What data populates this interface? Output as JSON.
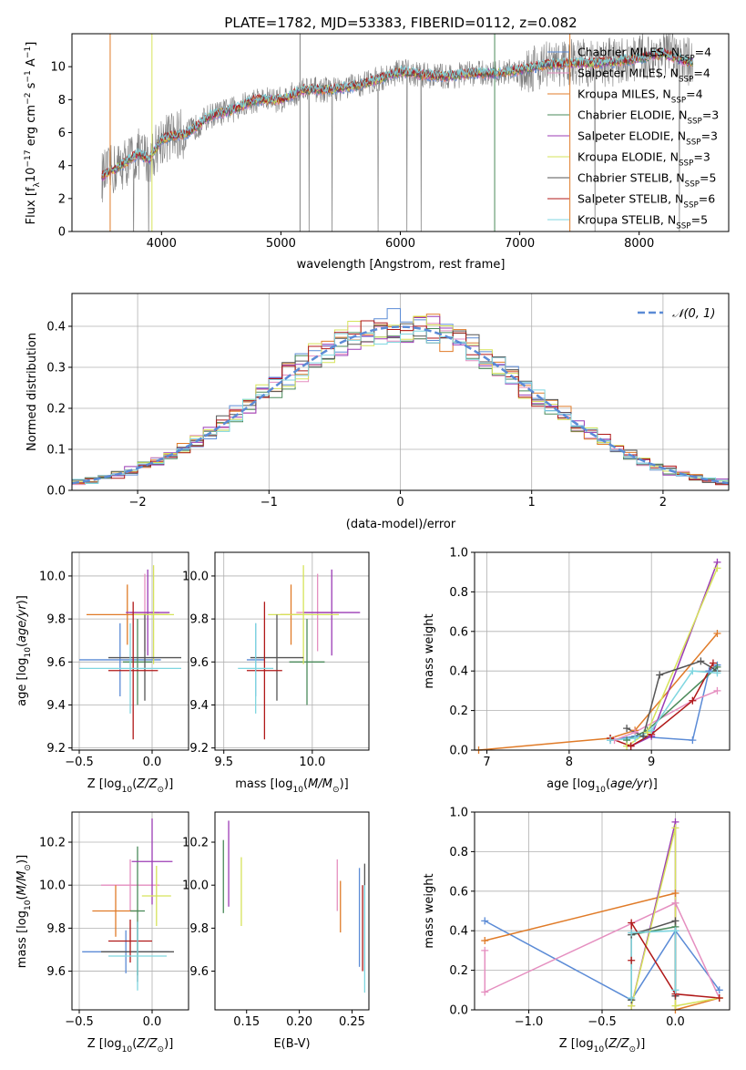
{
  "figure": {
    "title": "PLATE=1782, MJD=53383, FIBERID=0112, z=0.082"
  },
  "palette": {
    "Chabrier MILES": "#5b8bd6",
    "Salpeter MILES": "#e58fc0",
    "Kroupa MILES": "#e07b28",
    "Chabrier ELODIE": "#4a8a5a",
    "Salpeter ELODIE": "#9b3bb5",
    "Kroupa ELODIE": "#d6e35a",
    "Chabrier STELIB": "#555555",
    "Salpeter STELIB": "#b01818",
    "Kroupa STELIB": "#7fd6e0",
    "data": "#808080",
    "normal": "#5b8bd6"
  },
  "chart_data": [
    {
      "id": "spectrum",
      "type": "line",
      "title": "PLATE=1782, MJD=53383, FIBERID=0112, z=0.082",
      "xlabel": "wavelength [Angstrom, rest frame]",
      "ylabel": "Flux [f_λ 10^-17 erg cm^-2 s^-1 A^-1]",
      "xlim": [
        3250,
        8750
      ],
      "ylim": [
        0,
        12
      ],
      "xticks": [
        "4000",
        "5000",
        "6000",
        "7000",
        "8000"
      ],
      "yticks": [
        "0",
        "2",
        "4",
        "6",
        "8",
        "10"
      ],
      "legend_position": "right",
      "legend": [
        {
          "label": "Chabrier MILES, N_SSP=4",
          "text": "Chabrier MILES, N",
          "sub": "SSP",
          "tail": "=4"
        },
        {
          "label": "Salpeter MILES, N_SSP=4",
          "text": "Salpeter MILES, N",
          "sub": "SSP",
          "tail": "=4"
        },
        {
          "label": "Kroupa MILES, N_SSP=4",
          "text": "Kroupa MILES, N",
          "sub": "SSP",
          "tail": "=4"
        },
        {
          "label": "Chabrier ELODIE, N_SSP=3",
          "text": "Chabrier ELODIE, N",
          "sub": "SSP",
          "tail": "=3"
        },
        {
          "label": "Salpeter ELODIE, N_SSP=3",
          "text": "Salpeter ELODIE, N",
          "sub": "SSP",
          "tail": "=3"
        },
        {
          "label": "Kroupa ELODIE, N_SSP=3",
          "text": "Kroupa ELODIE, N",
          "sub": "SSP",
          "tail": "=3"
        },
        {
          "label": "Chabrier STELIB, N_SSP=5",
          "text": "Chabrier STELIB, N",
          "sub": "SSP",
          "tail": "=5"
        },
        {
          "label": "Salpeter STELIB, N_SSP=6",
          "text": "Salpeter STELIB, N",
          "sub": "SSP",
          "tail": "=6"
        },
        {
          "label": "Kroupa STELIB, N_SSP=5",
          "text": "Kroupa STELIB, N",
          "sub": "SSP",
          "tail": "=5"
        }
      ],
      "model_continuum": {
        "x": [
          3500,
          3700,
          3800,
          3900,
          4000,
          4100,
          4200,
          4300,
          4400,
          4600,
          4800,
          5000,
          5200,
          5400,
          5600,
          5800,
          6000,
          6200,
          6400,
          6600,
          6800,
          7000,
          7200,
          7400,
          7600,
          7800,
          8000,
          8200,
          8400
        ],
        "y": [
          3.3,
          4.2,
          4.7,
          4.4,
          5.6,
          5.8,
          5.9,
          6.4,
          7.0,
          7.4,
          8.0,
          8.0,
          8.6,
          8.6,
          8.8,
          9.2,
          9.7,
          9.5,
          9.4,
          9.6,
          9.6,
          9.8,
          10.1,
          10.2,
          10.2,
          10.3,
          10.5,
          10.8,
          10.3
        ]
      }
    },
    {
      "id": "residuals",
      "type": "histogram",
      "xlabel": "(data-model)/error",
      "ylabel": "Normed distribution",
      "xlim": [
        -2.5,
        2.5
      ],
      "ylim": [
        0,
        0.48
      ],
      "xticks": [
        "−2",
        "−1",
        "0",
        "1",
        "2"
      ],
      "yticks": [
        "0.0",
        "0.1",
        "0.2",
        "0.3",
        "0.4"
      ],
      "grid": true,
      "legend_position": "top-right",
      "legend": [
        "𝒩(0, 1)"
      ],
      "bin_width": 0.1
    },
    {
      "id": "age-vs-Z",
      "type": "scatter",
      "xlabel": "Z [log10(Z/Z⊙)]",
      "ylabel": "age [log10(age/yr)]",
      "xlim": [
        -0.55,
        0.25
      ],
      "ylim": [
        9.19,
        10.11
      ],
      "xticks": [
        "−0.5",
        "0.0"
      ],
      "yticks": [
        "9.2",
        "9.4",
        "9.6",
        "9.8",
        "10.0"
      ],
      "grid": true,
      "points": [
        {
          "model": "Chabrier MILES",
          "x": -0.22,
          "xerr": 0.28,
          "y": 9.61,
          "yerr": 0.17
        },
        {
          "model": "Salpeter MILES",
          "x": -0.05,
          "xerr": 0.1,
          "y": 9.83,
          "yerr": 0.18
        },
        {
          "model": "Kroupa MILES",
          "x": -0.17,
          "xerr": 0.28,
          "y": 9.82,
          "yerr": 0.14
        },
        {
          "model": "Chabrier ELODIE",
          "x": -0.1,
          "xerr": 0.1,
          "y": 9.6,
          "yerr": 0.2
        },
        {
          "model": "Salpeter ELODIE",
          "x": -0.03,
          "xerr": 0.15,
          "y": 9.83,
          "yerr": 0.2
        },
        {
          "model": "Kroupa ELODIE",
          "x": 0.01,
          "xerr": 0.14,
          "y": 9.82,
          "yerr": 0.23
        },
        {
          "model": "Chabrier STELIB",
          "x": -0.05,
          "xerr": 0.25,
          "y": 9.62,
          "yerr": 0.2
        },
        {
          "model": "Salpeter STELIB",
          "x": -0.13,
          "xerr": 0.17,
          "y": 9.56,
          "yerr": 0.32
        },
        {
          "model": "Kroupa STELIB",
          "x": -0.15,
          "xerr": 0.35,
          "y": 9.57,
          "yerr": 0.21
        }
      ]
    },
    {
      "id": "age-vs-mass",
      "type": "scatter",
      "xlabel": "mass [log10(M/M⊙)]",
      "xlim": [
        9.45,
        10.32
      ],
      "ylim": [
        9.19,
        10.11
      ],
      "xticks": [
        "9.5",
        "10.0"
      ],
      "yticks": [
        "9.2",
        "9.4",
        "9.6",
        "9.8",
        "10.0"
      ],
      "grid": true,
      "points": [
        {
          "model": "Chabrier MILES",
          "x": 9.68,
          "xerr": 0.05,
          "y": 9.61,
          "yerr": 0.17
        },
        {
          "model": "Salpeter MILES",
          "x": 10.03,
          "xerr": 0.12,
          "y": 9.83,
          "yerr": 0.18
        },
        {
          "model": "Kroupa MILES",
          "x": 9.88,
          "xerr": 0.06,
          "y": 9.82,
          "yerr": 0.14
        },
        {
          "model": "Chabrier ELODIE",
          "x": 9.97,
          "xerr": 0.1,
          "y": 9.6,
          "yerr": 0.2
        },
        {
          "model": "Salpeter ELODIE",
          "x": 10.11,
          "xerr": 0.16,
          "y": 9.83,
          "yerr": 0.2
        },
        {
          "model": "Kroupa ELODIE",
          "x": 9.95,
          "xerr": 0.2,
          "y": 9.82,
          "yerr": 0.23
        },
        {
          "model": "Chabrier STELIB",
          "x": 9.8,
          "xerr": 0.15,
          "y": 9.62,
          "yerr": 0.2
        },
        {
          "model": "Salpeter STELIB",
          "x": 9.73,
          "xerr": 0.1,
          "y": 9.56,
          "yerr": 0.32
        },
        {
          "model": "Kroupa STELIB",
          "x": 9.68,
          "xerr": 0.1,
          "y": 9.57,
          "yerr": 0.21
        }
      ]
    },
    {
      "id": "mass-weight-vs-age",
      "type": "line",
      "xlabel": "age [log10(age/yr)]",
      "ylabel": "mass weight",
      "xlim": [
        6.85,
        9.95
      ],
      "ylim": [
        0,
        1
      ],
      "xticks": [
        "7",
        "8",
        "9"
      ],
      "yticks": [
        "0.0",
        "0.2",
        "0.4",
        "0.6",
        "0.8",
        "1.0"
      ],
      "grid": true,
      "series": [
        {
          "model": "Kroupa MILES",
          "x": [
            6.9,
            8.5,
            8.8,
            9.8
          ],
          "y": [
            0.0,
            0.06,
            0.1,
            0.59
          ]
        },
        {
          "model": "Chabrier MILES",
          "x": [
            8.5,
            8.8,
            9.5,
            9.7,
            9.8
          ],
          "y": [
            0.05,
            0.07,
            0.05,
            0.4,
            0.43
          ]
        },
        {
          "model": "Salpeter MILES",
          "x": [
            8.55,
            8.8,
            9.5,
            9.8
          ],
          "y": [
            0.05,
            0.09,
            0.25,
            0.3
          ]
        },
        {
          "model": "Chabrier ELODIE",
          "x": [
            8.7,
            8.95,
            9.8
          ],
          "y": [
            0.05,
            0.1,
            0.42
          ]
        },
        {
          "model": "Salpeter ELODIE",
          "x": [
            8.75,
            9.0,
            9.8
          ],
          "y": [
            0.02,
            0.07,
            0.95
          ]
        },
        {
          "model": "Kroupa ELODIE",
          "x": [
            8.7,
            8.95,
            9.8
          ],
          "y": [
            0.02,
            0.09,
            0.92
          ]
        },
        {
          "model": "Chabrier STELIB",
          "x": [
            8.7,
            8.9,
            9.1,
            9.6,
            9.8
          ],
          "y": [
            0.11,
            0.07,
            0.38,
            0.45,
            0.4
          ]
        },
        {
          "model": "Salpeter STELIB",
          "x": [
            8.5,
            8.75,
            9.0,
            9.5,
            9.75
          ],
          "y": [
            0.06,
            0.02,
            0.08,
            0.25,
            0.44
          ]
        },
        {
          "model": "Kroupa STELIB",
          "x": [
            8.5,
            8.8,
            9.0,
            9.5,
            9.8
          ],
          "y": [
            0.05,
            0.06,
            0.1,
            0.4,
            0.39
          ]
        }
      ]
    },
    {
      "id": "mass-vs-Z",
      "type": "scatter",
      "xlabel": "Z [log10(Z/Z⊙)]",
      "ylabel": "mass [log10(M/M⊙)]",
      "xlim": [
        -0.55,
        0.25
      ],
      "ylim": [
        9.42,
        10.34
      ],
      "xticks": [
        "−0.5",
        "0.0"
      ],
      "yticks": [
        "9.6",
        "9.8",
        "10.0",
        "10.2"
      ],
      "grid": true,
      "points": [
        {
          "model": "Chabrier MILES",
          "x": -0.18,
          "xerr": 0.3,
          "y": 9.69,
          "yerr": 0.1
        },
        {
          "model": "Salpeter MILES",
          "x": -0.15,
          "xerr": 0.2,
          "y": 10.0,
          "yerr": 0.12
        },
        {
          "model": "Kroupa MILES",
          "x": -0.25,
          "xerr": 0.16,
          "y": 9.88,
          "yerr": 0.12
        },
        {
          "model": "Chabrier ELODIE",
          "x": -0.1,
          "xerr": 0.05,
          "y": 9.88,
          "yerr": 0.3
        },
        {
          "model": "Salpeter ELODIE",
          "x": 0.0,
          "xerr": 0.14,
          "y": 10.11,
          "yerr": 0.2
        },
        {
          "model": "Kroupa ELODIE",
          "x": 0.03,
          "xerr": 0.1,
          "y": 9.95,
          "yerr": 0.14
        },
        {
          "model": "Chabrier STELIB",
          "x": -0.1,
          "xerr": 0.25,
          "y": 9.69,
          "yerr": 0.14
        },
        {
          "model": "Salpeter STELIB",
          "x": -0.15,
          "xerr": 0.15,
          "y": 9.74,
          "yerr": 0.1
        },
        {
          "model": "Kroupa STELIB",
          "x": -0.1,
          "xerr": 0.2,
          "y": 9.67,
          "yerr": 0.16
        }
      ]
    },
    {
      "id": "mass-vs-EBV",
      "type": "scatter",
      "xlabel": "E(B-V)",
      "xlim": [
        0.12,
        0.266
      ],
      "ylim": [
        9.42,
        10.34
      ],
      "xticks": [
        "0.15",
        "0.20",
        "0.25"
      ],
      "yticks": [
        "9.6",
        "9.8",
        "10.0",
        "10.2"
      ],
      "grid": false,
      "points": [
        {
          "model": "Chabrier MILES",
          "x": 0.257,
          "y": 9.85,
          "yerr": 0.23
        },
        {
          "model": "Salpeter MILES",
          "x": 0.236,
          "y": 10.0,
          "yerr": 0.12
        },
        {
          "model": "Kroupa MILES",
          "x": 0.239,
          "y": 9.9,
          "yerr": 0.12
        },
        {
          "model": "Chabrier ELODIE",
          "x": 0.128,
          "y": 10.04,
          "yerr": 0.17
        },
        {
          "model": "Salpeter ELODIE",
          "x": 0.133,
          "y": 10.1,
          "yerr": 0.2
        },
        {
          "model": "Kroupa ELODIE",
          "x": 0.145,
          "y": 9.97,
          "yerr": 0.16
        },
        {
          "model": "Chabrier STELIB",
          "x": 0.262,
          "y": 9.85,
          "yerr": 0.25
        },
        {
          "model": "Salpeter STELIB",
          "x": 0.26,
          "y": 9.8,
          "yerr": 0.2
        },
        {
          "model": "Kroupa STELIB",
          "x": 0.262,
          "y": 9.75,
          "yerr": 0.25
        }
      ]
    },
    {
      "id": "mass-weight-vs-Z",
      "type": "line",
      "xlabel": "Z [log10(Z/Z⊙)]",
      "ylabel": "mass weight",
      "xlim": [
        -1.37,
        0.37
      ],
      "ylim": [
        0,
        1
      ],
      "xticks": [
        "−1.0",
        "−0.5",
        "0.0"
      ],
      "yticks": [
        "0.0",
        "0.2",
        "0.4",
        "0.6",
        "0.8",
        "1.0"
      ],
      "grid": true,
      "series": [
        {
          "model": "Chabrier MILES",
          "x": [
            -1.3,
            -0.3,
            0.0,
            0.3
          ],
          "y": [
            0.45,
            0.05,
            0.4,
            0.1
          ]
        },
        {
          "model": "Salpeter MILES",
          "x": [
            -1.3,
            -1.3,
            0.0,
            0.3
          ],
          "y": [
            0.3,
            0.09,
            0.54,
            0.06
          ]
        },
        {
          "model": "Kroupa MILES",
          "x": [
            -1.3,
            0.0,
            0.0,
            0.3
          ],
          "y": [
            0.35,
            0.59,
            0.0,
            0.06
          ]
        },
        {
          "model": "Chabrier ELODIE",
          "x": [
            -0.3,
            -0.3,
            0.0
          ],
          "y": [
            0.05,
            0.38,
            0.42
          ]
        },
        {
          "model": "Salpeter ELODIE",
          "x": [
            -0.3,
            0.0,
            0.0
          ],
          "y": [
            0.02,
            0.95,
            0.07
          ]
        },
        {
          "model": "Kroupa ELODIE",
          "x": [
            -0.3,
            0.0,
            0.0,
            0.3
          ],
          "y": [
            0.02,
            0.92,
            0.02,
            0.06
          ]
        },
        {
          "model": "Chabrier STELIB",
          "x": [
            -0.3,
            -0.3,
            0.0,
            0.0
          ],
          "y": [
            0.05,
            0.38,
            0.45,
            0.07
          ]
        },
        {
          "model": "Salpeter STELIB",
          "x": [
            -0.3,
            -0.3,
            0.0,
            0.3
          ],
          "y": [
            0.25,
            0.44,
            0.08,
            0.06
          ]
        },
        {
          "model": "Kroupa STELIB",
          "x": [
            -0.3,
            -0.3,
            0.0,
            0.0
          ],
          "y": [
            0.06,
            0.39,
            0.4,
            0.1
          ]
        }
      ]
    }
  ]
}
